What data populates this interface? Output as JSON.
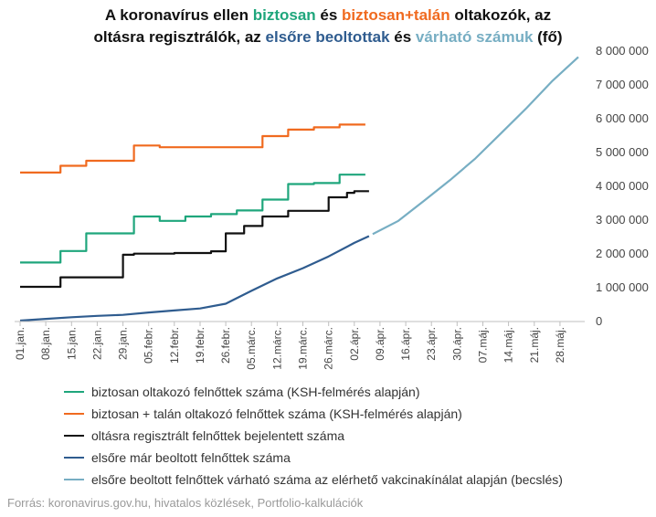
{
  "title": {
    "line1_parts": [
      {
        "text": "A koronavírus ellen ",
        "color": "#111111"
      },
      {
        "text": "biztosan",
        "color": "#1fa67c"
      },
      {
        "text": " és ",
        "color": "#111111"
      },
      {
        "text": "biztosan+talán",
        "color": "#f06a1f"
      },
      {
        "text": " oltakozók, az",
        "color": "#111111"
      }
    ],
    "line2_parts": [
      {
        "text": "oltásra regisztrálók, az ",
        "color": "#111111"
      },
      {
        "text": "elsőre beoltottak",
        "color": "#2f5c8f"
      },
      {
        "text": " és ",
        "color": "#111111"
      },
      {
        "text": "várható számuk",
        "color": "#77aec3"
      },
      {
        "text": " (fő)",
        "color": "#111111"
      }
    ]
  },
  "source": "Forrás: koronavirus.gov.hu, hivatalos közlések, Portfolio-kalkulációk",
  "chart_data": {
    "type": "line",
    "x_unit": "date",
    "x_range": [
      "2021-01-01",
      "2021-06-02"
    ],
    "ylim": [
      0,
      8000000
    ],
    "y_ticks": [
      0,
      1000000,
      2000000,
      3000000,
      4000000,
      5000000,
      6000000,
      7000000,
      8000000
    ],
    "y_tick_labels": [
      "0",
      "1 000 000",
      "2 000 000",
      "3 000 000",
      "4 000 000",
      "5 000 000",
      "6 000 000",
      "7 000 000",
      "8 000 000"
    ],
    "y_axis_side": "right",
    "grid": false,
    "legend_position": "bottom",
    "x_ticks": [
      "2021-01-01",
      "2021-01-08",
      "2021-01-15",
      "2021-01-22",
      "2021-01-29",
      "2021-02-05",
      "2021-02-12",
      "2021-02-19",
      "2021-02-26",
      "2021-03-05",
      "2021-03-12",
      "2021-03-19",
      "2021-03-26",
      "2021-04-02",
      "2021-04-09",
      "2021-04-16",
      "2021-04-23",
      "2021-04-30",
      "2021-05-07",
      "2021-05-14",
      "2021-05-21",
      "2021-05-28"
    ],
    "x_tick_labels": [
      "01.jan.",
      "08.jan.",
      "15.jan.",
      "22.jan.",
      "29.jan.",
      "05.febr.",
      "12.febr.",
      "19.febr.",
      "26.febr.",
      "05.márc.",
      "12.márc.",
      "19.márc.",
      "26.márc.",
      "02.ápr.",
      "09.ápr.",
      "16.ápr.",
      "23.ápr.",
      "30.ápr.",
      "07.máj.",
      "14.máj.",
      "21.máj.",
      "28.máj."
    ],
    "series": [
      {
        "name": "biztosan oltakozó felnőttek száma (KSH-felmérés alapján)",
        "color": "#1fa67c",
        "step": true,
        "points": [
          [
            "2021-01-01",
            1720000
          ],
          [
            "2021-01-12",
            2060000
          ],
          [
            "2021-01-19",
            2580000
          ],
          [
            "2021-02-01",
            3080000
          ],
          [
            "2021-02-08",
            2950000
          ],
          [
            "2021-02-15",
            3080000
          ],
          [
            "2021-02-22",
            3150000
          ],
          [
            "2021-03-01",
            3260000
          ],
          [
            "2021-03-08",
            3580000
          ],
          [
            "2021-03-15",
            4040000
          ],
          [
            "2021-03-22",
            4070000
          ],
          [
            "2021-03-29",
            4320000
          ],
          [
            "2021-04-05",
            4320000
          ]
        ]
      },
      {
        "name": "biztosan + talán oltakozó felnőttek száma (KSH-felmérés alapján)",
        "color": "#f06a1f",
        "step": true,
        "points": [
          [
            "2021-01-01",
            4380000
          ],
          [
            "2021-01-12",
            4580000
          ],
          [
            "2021-01-19",
            4730000
          ],
          [
            "2021-02-01",
            5180000
          ],
          [
            "2021-02-08",
            5130000
          ],
          [
            "2021-02-15",
            5130000
          ],
          [
            "2021-03-01",
            5130000
          ],
          [
            "2021-03-08",
            5460000
          ],
          [
            "2021-03-15",
            5650000
          ],
          [
            "2021-03-22",
            5720000
          ],
          [
            "2021-03-29",
            5800000
          ],
          [
            "2021-04-05",
            5800000
          ]
        ]
      },
      {
        "name": "oltásra regisztrált felnőttek bejelentett száma",
        "color": "#111111",
        "step": true,
        "points": [
          [
            "2021-01-01",
            1000000
          ],
          [
            "2021-01-12",
            1280000
          ],
          [
            "2021-01-29",
            1950000
          ],
          [
            "2021-02-01",
            1980000
          ],
          [
            "2021-02-12",
            2000000
          ],
          [
            "2021-02-22",
            2050000
          ],
          [
            "2021-02-26",
            2580000
          ],
          [
            "2021-03-03",
            2800000
          ],
          [
            "2021-03-08",
            3080000
          ],
          [
            "2021-03-15",
            3250000
          ],
          [
            "2021-03-26",
            3650000
          ],
          [
            "2021-03-31",
            3780000
          ],
          [
            "2021-04-02",
            3830000
          ],
          [
            "2021-04-06",
            3830000
          ]
        ]
      },
      {
        "name": "elsőre már beoltott felnőttek száma",
        "color": "#2f5c8f",
        "step": false,
        "points": [
          [
            "2021-01-01",
            0
          ],
          [
            "2021-01-08",
            50000
          ],
          [
            "2021-01-15",
            100000
          ],
          [
            "2021-01-22",
            140000
          ],
          [
            "2021-01-29",
            170000
          ],
          [
            "2021-02-05",
            240000
          ],
          [
            "2021-02-12",
            300000
          ],
          [
            "2021-02-19",
            360000
          ],
          [
            "2021-02-26",
            500000
          ],
          [
            "2021-03-05",
            880000
          ],
          [
            "2021-03-12",
            1250000
          ],
          [
            "2021-03-19",
            1550000
          ],
          [
            "2021-03-26",
            1900000
          ],
          [
            "2021-04-02",
            2300000
          ],
          [
            "2021-04-06",
            2500000
          ]
        ]
      },
      {
        "name": "elsőre beoltott felnőttek várható száma az elérhető vakcinakínálat alapján (becslés)",
        "color": "#77aec3",
        "step": false,
        "points": [
          [
            "2021-04-07",
            2560000
          ],
          [
            "2021-04-14",
            2950000
          ],
          [
            "2021-04-21",
            3550000
          ],
          [
            "2021-04-28",
            4150000
          ],
          [
            "2021-05-05",
            4800000
          ],
          [
            "2021-05-12",
            5550000
          ],
          [
            "2021-05-19",
            6300000
          ],
          [
            "2021-05-26",
            7100000
          ],
          [
            "2021-06-02",
            7800000
          ]
        ]
      }
    ]
  }
}
